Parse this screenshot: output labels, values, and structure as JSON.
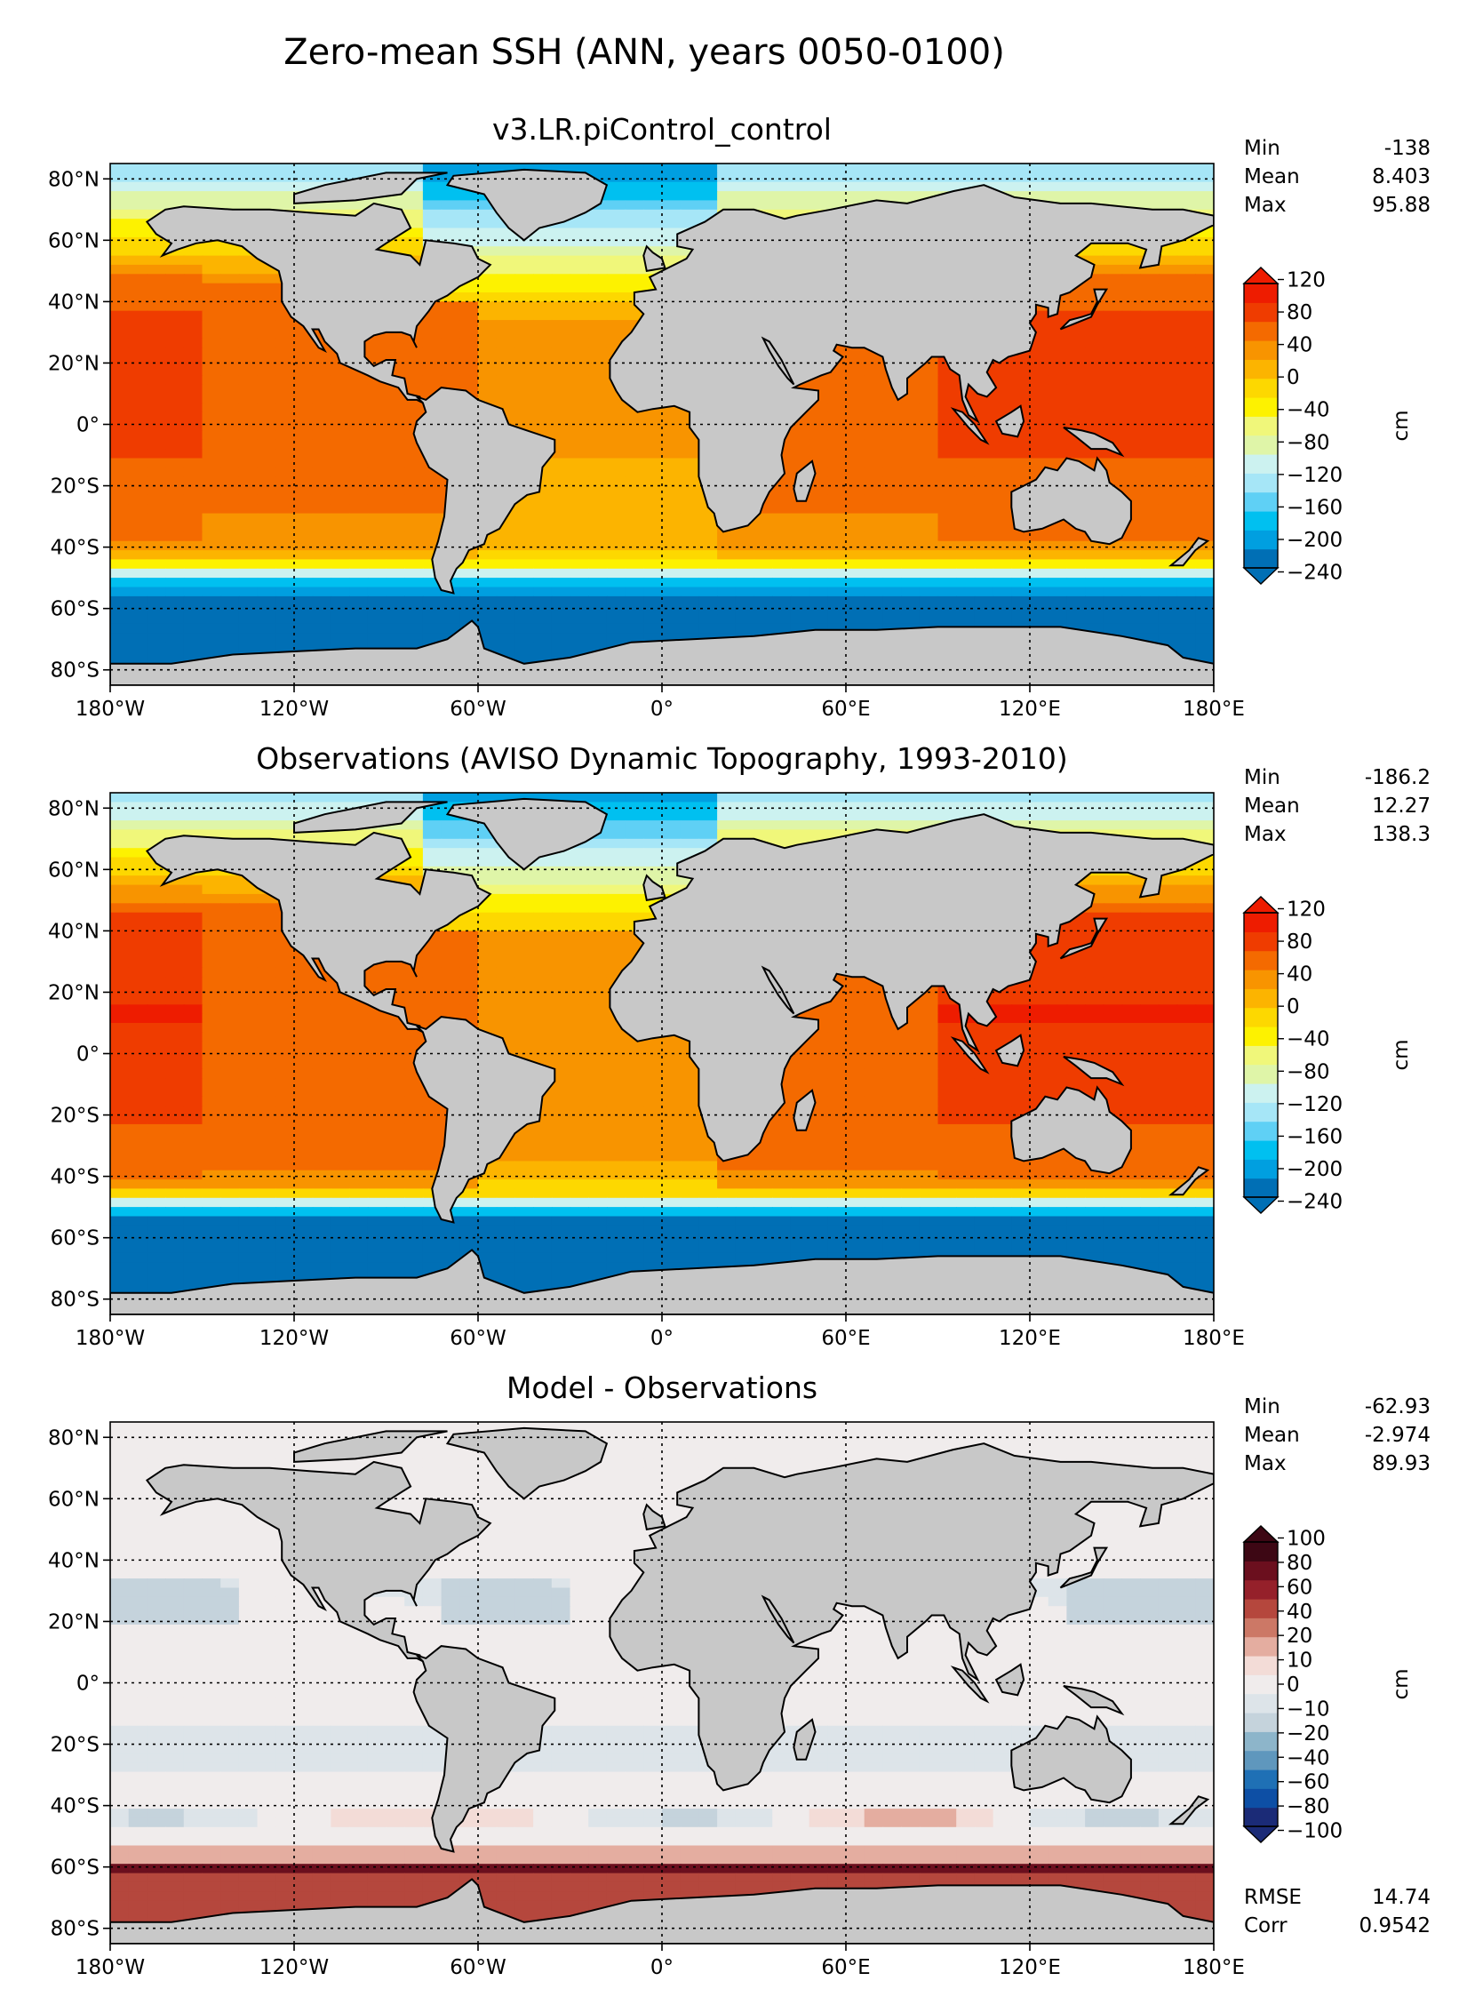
{
  "figure": {
    "title": "Zero-mean SSH (ANN, years 0050-0100)",
    "xticks": [
      "180°W",
      "120°W",
      "60°W",
      "0°",
      "60°E",
      "120°E",
      "180°E"
    ],
    "yticks": [
      "80°N",
      "60°N",
      "40°N",
      "20°N",
      "0°",
      "20°S",
      "40°S",
      "60°S",
      "80°S"
    ],
    "colorbar_unit": "cm"
  },
  "colors": {
    "land": "#c8c8c8",
    "ssh_levels": [
      "#006fb5",
      "#009fe0",
      "#00c0f0",
      "#5fd0f5",
      "#a6e6f7",
      "#ccf2f0",
      "#dff5a8",
      "#f0f77a",
      "#fdf200",
      "#fdd800",
      "#fcb400",
      "#f89400",
      "#f46a00",
      "#ef3c00",
      "#ee1c00"
    ],
    "diff_levels": [
      "#1b2b77",
      "#0d4fa5",
      "#1f70b5",
      "#5f97bd",
      "#8db5ca",
      "#c5d3dc",
      "#dde4e9",
      "#f0ecec",
      "#f3dcd7",
      "#e4ada0",
      "#cc7866",
      "#b5473d",
      "#95202a",
      "#6b0f1e",
      "#3d0714"
    ]
  },
  "chart_data": [
    {
      "type": "heatmap",
      "title": "v3.LR.piControl_control",
      "xlim": [
        -180,
        180
      ],
      "ylim": [
        -85,
        85
      ],
      "grid": true,
      "stats": [
        {
          "label": "Min",
          "value": "-138"
        },
        {
          "label": "Mean",
          "value": "8.403"
        },
        {
          "label": "Max",
          "value": "95.88"
        }
      ],
      "colorbar": {
        "unit": "cm",
        "ticks": [
          "120",
          "80",
          "40",
          "0",
          "−40",
          "−80",
          "−120",
          "−160",
          "−200",
          "−240"
        ],
        "extend": "both"
      }
    },
    {
      "type": "heatmap",
      "title": "Observations (AVISO Dynamic Topography, 1993-2010)",
      "xlim": [
        -180,
        180
      ],
      "ylim": [
        -85,
        85
      ],
      "grid": true,
      "stats": [
        {
          "label": "Min",
          "value": "-186.2"
        },
        {
          "label": "Mean",
          "value": "12.27"
        },
        {
          "label": "Max",
          "value": "138.3"
        }
      ],
      "colorbar": {
        "unit": "cm",
        "ticks": [
          "120",
          "80",
          "40",
          "0",
          "−40",
          "−80",
          "−120",
          "−160",
          "−200",
          "−240"
        ],
        "extend": "both"
      }
    },
    {
      "type": "heatmap",
      "title": "Model - Observations",
      "xlim": [
        -180,
        180
      ],
      "ylim": [
        -85,
        85
      ],
      "grid": true,
      "stats": [
        {
          "label": "Min",
          "value": "-62.93"
        },
        {
          "label": "Mean",
          "value": "-2.974"
        },
        {
          "label": "Max",
          "value": "89.93"
        }
      ],
      "extra_stats": [
        {
          "label": "RMSE",
          "value": "14.74"
        },
        {
          "label": "Corr",
          "value": "0.9542"
        }
      ],
      "colorbar": {
        "unit": "cm",
        "ticks": [
          "100",
          "80",
          "60",
          "40",
          "20",
          "10",
          "0",
          "−10",
          "−20",
          "−40",
          "−60",
          "−80",
          "−100"
        ],
        "extend": "both"
      }
    }
  ]
}
